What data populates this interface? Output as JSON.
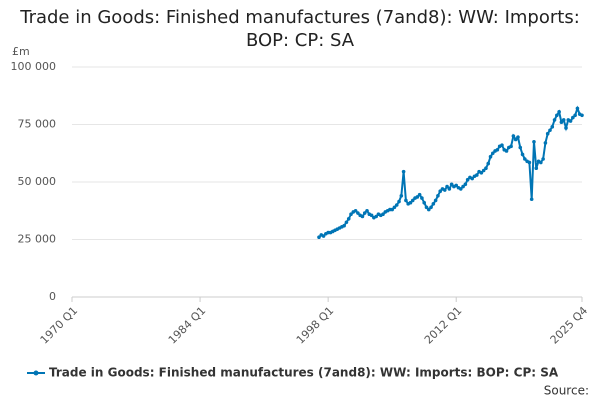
{
  "chart_data": {
    "type": "line",
    "title": "Trade in Goods: Finished manufactures (7and8): WW: Imports: BOP: CP: SA",
    "y_label": "£m",
    "source": "Source:",
    "categories": [
      "1970 Q1",
      null,
      null,
      null,
      null,
      null,
      null,
      null,
      null,
      null,
      null,
      null,
      null,
      null,
      null,
      null,
      null,
      null,
      null,
      null,
      null,
      null,
      null,
      null,
      null,
      null,
      null,
      null,
      null,
      null,
      null,
      null,
      null,
      null,
      null,
      null,
      null,
      null,
      null,
      null,
      null,
      null,
      null,
      null,
      null,
      null,
      null,
      null,
      null,
      null,
      null,
      null,
      null,
      null,
      null,
      null,
      "1984 Q1",
      null,
      null,
      null,
      null,
      null,
      null,
      null,
      null,
      null,
      null,
      null,
      null,
      null,
      null,
      null,
      null,
      null,
      null,
      null,
      null,
      null,
      null,
      null,
      null,
      null,
      null,
      null,
      null,
      null,
      null,
      null,
      null,
      null,
      null,
      null,
      null,
      null,
      null,
      null,
      null,
      null,
      null,
      null,
      null,
      null,
      null,
      null,
      null,
      null,
      null,
      null,
      null,
      null,
      null,
      null,
      "1998 Q1",
      null,
      null,
      null,
      null,
      null,
      null,
      null,
      null,
      null,
      null,
      null,
      null,
      null,
      null,
      null,
      null,
      null,
      null,
      null,
      null,
      null,
      null,
      null,
      null,
      null,
      null,
      null,
      null,
      null,
      null,
      null,
      null,
      null,
      null,
      null,
      null,
      null,
      null,
      null,
      null,
      null,
      null,
      null,
      null,
      null,
      null,
      null,
      null,
      null,
      null,
      null,
      null,
      null,
      null,
      null,
      "2012 Q1",
      null,
      null,
      null,
      null,
      null,
      null,
      null,
      null,
      null,
      null,
      null,
      null,
      null,
      null,
      null,
      null,
      null,
      null,
      null,
      null,
      null,
      null,
      null,
      null,
      null,
      null,
      null,
      null,
      null,
      null,
      null,
      null,
      null,
      null,
      null,
      null,
      null,
      null,
      null,
      null,
      null,
      null,
      null,
      null,
      null,
      null,
      null,
      null,
      null,
      null,
      null,
      null,
      null,
      null,
      "2025 Q4"
    ],
    "series": [
      {
        "name": "Trade in Goods: Finished manufactures (7and8): WW: Imports: BOP: CP: SA",
        "color": "#0075b5",
        "values": [
          null,
          null,
          null,
          null,
          null,
          null,
          null,
          null,
          null,
          null,
          null,
          null,
          null,
          null,
          null,
          null,
          null,
          null,
          null,
          null,
          null,
          null,
          null,
          null,
          null,
          null,
          null,
          null,
          null,
          null,
          null,
          null,
          null,
          null,
          null,
          null,
          null,
          null,
          null,
          null,
          null,
          null,
          null,
          null,
          null,
          null,
          null,
          null,
          null,
          null,
          null,
          null,
          null,
          null,
          null,
          null,
          null,
          null,
          null,
          null,
          null,
          null,
          null,
          null,
          null,
          null,
          null,
          null,
          null,
          null,
          null,
          null,
          null,
          null,
          null,
          null,
          null,
          null,
          null,
          null,
          null,
          null,
          null,
          null,
          null,
          null,
          null,
          null,
          null,
          null,
          null,
          null,
          null,
          null,
          null,
          null,
          null,
          null,
          null,
          null,
          null,
          null,
          null,
          null,
          null,
          null,
          null,
          null,
          26000,
          27000,
          26500,
          27500,
          28000,
          28000,
          28500,
          29000,
          29500,
          30000,
          30500,
          31000,
          32500,
          34000,
          36000,
          37000,
          37500,
          36500,
          35500,
          35000,
          36500,
          37500,
          36000,
          35500,
          34500,
          35000,
          36000,
          35500,
          36000,
          37000,
          37500,
          38000,
          38000,
          39000,
          40000,
          41500,
          44000,
          54500,
          42000,
          40500,
          41000,
          42000,
          43000,
          43500,
          44500,
          43000,
          41000,
          39000,
          38000,
          39000,
          40500,
          42000,
          44000,
          46000,
          47000,
          46500,
          48000,
          47000,
          49000,
          48000,
          48500,
          47500,
          47000,
          48000,
          49000,
          51000,
          52000,
          51500,
          52500,
          53000,
          54500,
          54000,
          55000,
          56000,
          58000,
          61000,
          62500,
          63500,
          64000,
          65500,
          66000,
          64000,
          63500,
          65000,
          65500,
          70000,
          68500,
          69500,
          65000,
          62000,
          60000,
          59000,
          58500,
          42500,
          67500,
          56000,
          59000,
          58500,
          60000,
          67000,
          71000,
          72500,
          74000,
          77000,
          79000,
          80500,
          76000,
          77000,
          73500,
          77000,
          76500,
          78000,
          79000,
          82000,
          79500,
          79000
        ]
      }
    ],
    "ylim": [
      0,
      100000
    ],
    "yticks": [
      0,
      {
        "value": 25000,
        "label": "25 000"
      },
      {
        "value": 50000,
        "label": "50 000"
      },
      {
        "value": 75000,
        "label": "75 000"
      },
      {
        "value": 100000,
        "label": "100 000"
      }
    ],
    "grid": true,
    "legend": "bottom"
  }
}
